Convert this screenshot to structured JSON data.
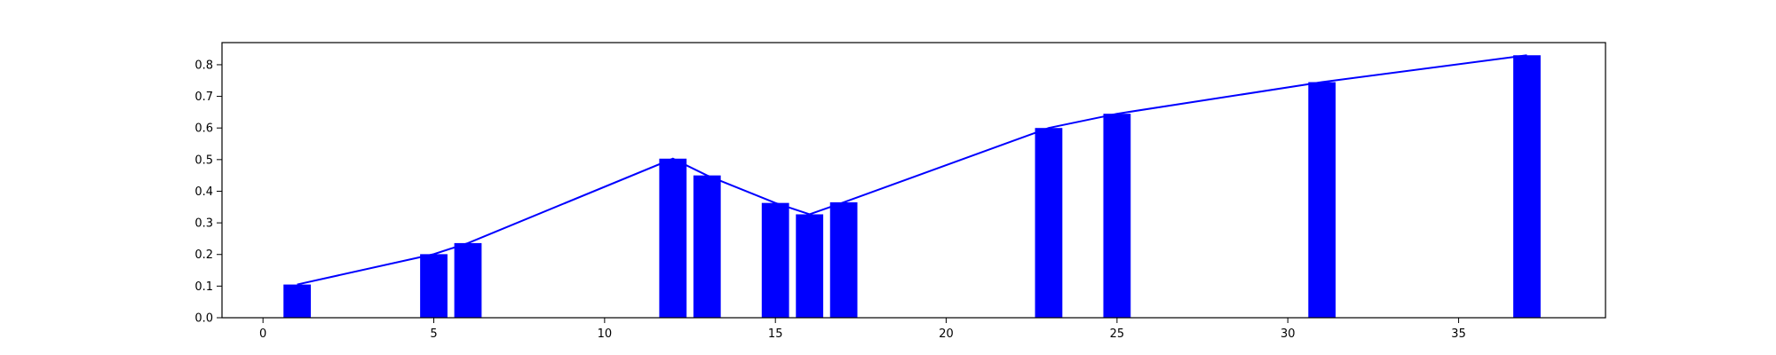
{
  "chart_data": {
    "type": "bar",
    "title": "",
    "xlabel": "",
    "ylabel": "",
    "xlim": [
      -1.2,
      39.3
    ],
    "ylim": [
      0,
      0.87
    ],
    "x_ticks": [
      0,
      5,
      10,
      15,
      20,
      25,
      30,
      35
    ],
    "y_ticks": [
      0.0,
      0.1,
      0.2,
      0.3,
      0.4,
      0.5,
      0.6,
      0.7,
      0.8
    ],
    "x_tick_labels": [
      "0",
      "5",
      "10",
      "15",
      "20",
      "25",
      "30",
      "35"
    ],
    "y_tick_labels": [
      "0.0",
      "0.1",
      "0.2",
      "0.3",
      "0.4",
      "0.5",
      "0.6",
      "0.7",
      "0.8"
    ],
    "grid": false,
    "bar_width": 0.8,
    "bar_color": "#0000ff",
    "line_color": "#0000ff",
    "x": [
      1,
      5,
      6,
      12,
      13,
      15,
      16,
      17,
      23,
      25,
      31,
      37
    ],
    "values": [
      0.105,
      0.201,
      0.236,
      0.503,
      0.45,
      0.363,
      0.327,
      0.365,
      0.6,
      0.645,
      0.745,
      0.83
    ]
  }
}
